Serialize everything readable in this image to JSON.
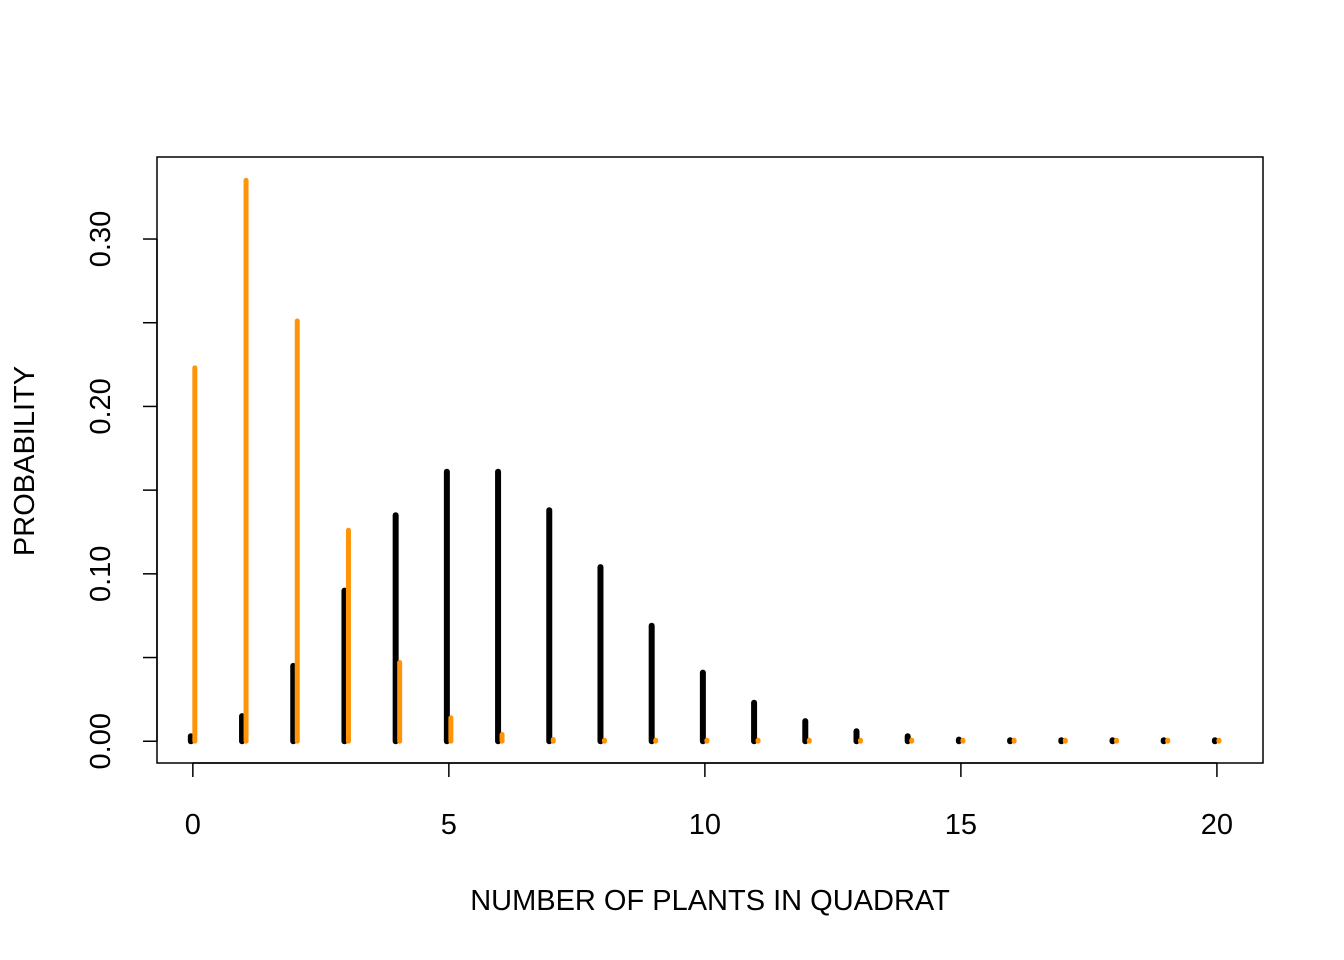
{
  "chart_data": {
    "type": "bar",
    "xlabel": "NUMBER OF PLANTS IN QUADRAT",
    "ylabel": "PROBABILITY",
    "x": [
      0,
      1,
      2,
      3,
      4,
      5,
      6,
      7,
      8,
      9,
      10,
      11,
      12,
      13,
      14,
      15,
      16,
      17,
      18,
      19,
      20
    ],
    "xlim": [
      -0.7,
      20.9
    ],
    "ylim": [
      -0.013,
      0.349
    ],
    "xticks": [
      0,
      5,
      10,
      15,
      20
    ],
    "xtick_labels": [
      "0",
      "5",
      "10",
      "15",
      "20"
    ],
    "yticks": [
      0.0,
      0.05,
      0.1,
      0.15,
      0.2,
      0.25,
      0.3
    ],
    "ytick_labels": [
      "0.00",
      "",
      "0.10",
      "",
      "0.20",
      "",
      "0.30"
    ],
    "grid": false,
    "legend": "none",
    "series": [
      {
        "color": "#000000",
        "values": [
          0.003,
          0.015,
          0.045,
          0.09,
          0.135,
          0.161,
          0.161,
          0.138,
          0.104,
          0.069,
          0.041,
          0.023,
          0.012,
          0.006,
          0.003,
          0.001,
          0.0005,
          0.0002,
          0.0001,
          3e-05,
          1e-05
        ]
      },
      {
        "color": "#FF9408",
        "values": [
          0.223,
          0.335,
          0.251,
          0.126,
          0.047,
          0.014,
          0.004,
          0.001,
          0.0002,
          3e-05,
          0.0,
          0.0,
          0.0,
          0.0,
          0.0,
          0.0,
          0.0,
          0.0,
          0.0,
          0.0,
          0.0
        ]
      }
    ]
  }
}
